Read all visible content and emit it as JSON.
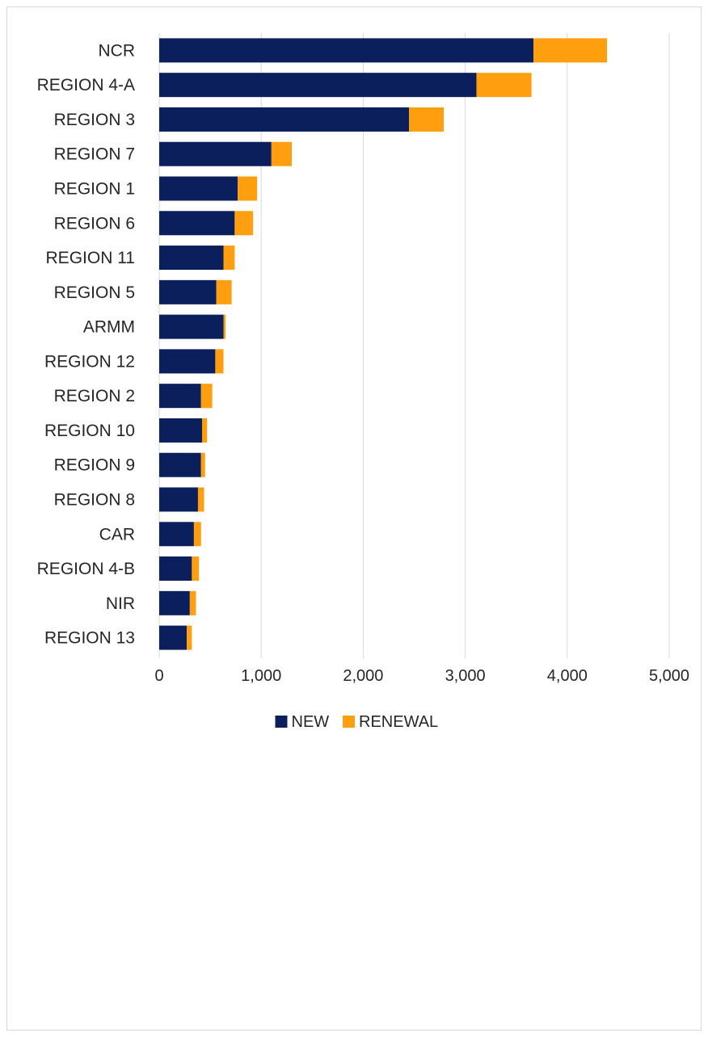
{
  "chart_data": {
    "type": "bar",
    "orientation": "horizontal",
    "stacked": true,
    "categories": [
      "NCR",
      "REGION 4-A",
      "REGION 3",
      "REGION 7",
      "REGION 1",
      "REGION 6",
      "REGION 11",
      "REGION 5",
      "ARMM",
      "REGION 12",
      "REGION 2",
      "REGION 10",
      "REGION 9",
      "REGION 8",
      "CAR",
      "REGION 4-B",
      "NIR",
      "REGION 13"
    ],
    "series": [
      {
        "name": "NEW",
        "color": "#0b1f5c",
        "values": [
          3670,
          3110,
          2450,
          1100,
          770,
          740,
          630,
          560,
          630,
          550,
          410,
          420,
          410,
          380,
          340,
          320,
          300,
          270
        ]
      },
      {
        "name": "RENEWAL",
        "color": "#ff9f0f",
        "values": [
          720,
          540,
          340,
          200,
          190,
          180,
          110,
          150,
          20,
          80,
          110,
          50,
          40,
          60,
          70,
          70,
          60,
          50
        ]
      }
    ],
    "xlim": [
      0,
      5000
    ],
    "xticks": [
      "0",
      "1,000",
      "2,000",
      "3,000",
      "4,000",
      "5,000"
    ],
    "xtick_values": [
      0,
      1000,
      2000,
      3000,
      4000,
      5000
    ],
    "grid": "vertical",
    "legend": "bottom",
    "title": "",
    "xlabel": "",
    "ylabel": ""
  }
}
